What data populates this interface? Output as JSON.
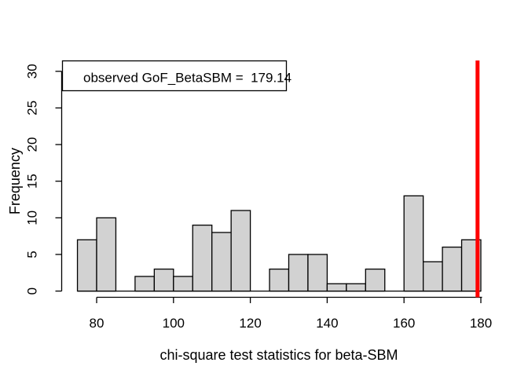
{
  "chart_data": {
    "type": "histogram",
    "title": "",
    "xlabel": "chi-square test statistics for beta-SBM",
    "ylabel": "Frequency",
    "bins": {
      "start": 75,
      "width": 5
    },
    "counts": [
      7,
      10,
      0,
      2,
      3,
      2,
      9,
      8,
      11,
      0,
      3,
      5,
      5,
      1,
      1,
      3,
      0,
      13,
      4,
      6,
      7
    ],
    "x_ticks": [
      80,
      100,
      120,
      140,
      160,
      180
    ],
    "y_ticks": [
      0,
      5,
      10,
      15,
      20,
      25,
      30
    ],
    "xlim": [
      75,
      180
    ],
    "ylim": [
      0,
      31
    ],
    "grid": false,
    "legend": {
      "label": "observed GoF_BetaSBM =  179.14",
      "position": "topleft"
    },
    "observed_value": 179.14,
    "colors": {
      "bar_fill": "#d2d2d2",
      "bar_stroke": "#000000",
      "axis": "#000000",
      "observed_line": "#ff0000",
      "legend_fill": "#ffffff",
      "background": "#ffffff"
    }
  }
}
